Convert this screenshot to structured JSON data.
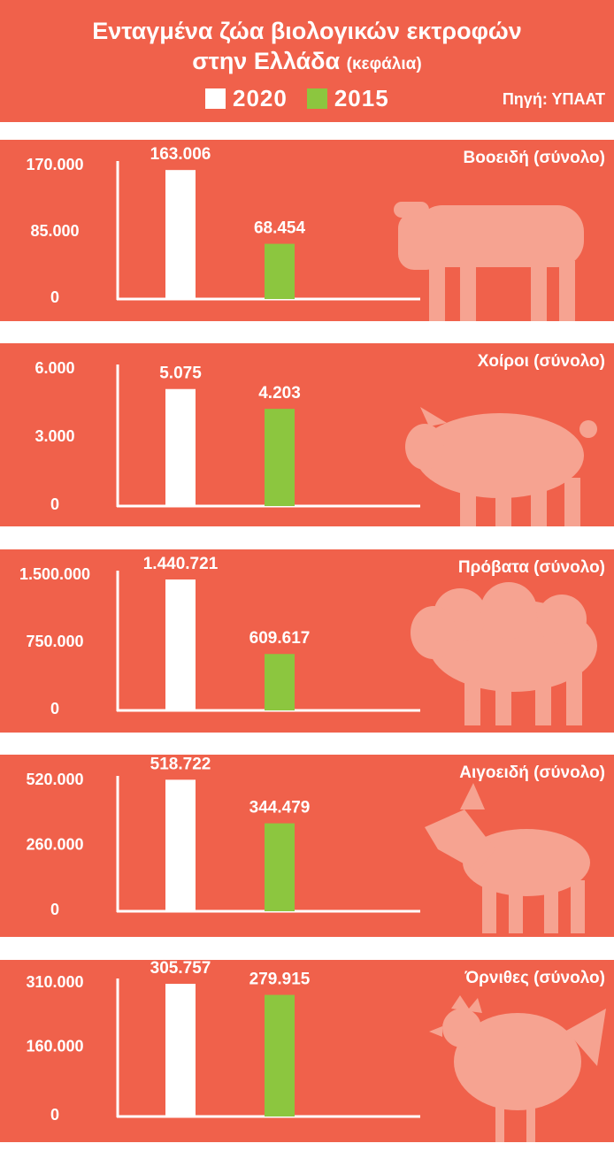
{
  "header": {
    "title_line1": "Ενταγμένα ζώα βιολογικών εκτροφών",
    "title_line2": "στην Ελλάδα",
    "title_unit": "(κεφάλια)",
    "source": "Πηγή: ΥΠΑΑΤ"
  },
  "colors": {
    "background": "#f0614b",
    "series_2020": "#ffffff",
    "series_2015": "#8cc63f",
    "icon": "#f6a391"
  },
  "legend": [
    {
      "label": "2020",
      "color": "#ffffff"
    },
    {
      "label": "2015",
      "color": "#8cc63f"
    }
  ],
  "chart_data": [
    {
      "type": "bar",
      "title": "Βοοειδή (σύνολο)",
      "categories": [
        "2020",
        "2015"
      ],
      "values": [
        163006,
        68454
      ],
      "value_labels": [
        "163.006",
        "68.454"
      ],
      "ylim": [
        0,
        170000
      ],
      "yticks": [
        0,
        85000,
        170000
      ],
      "ytick_labels": [
        "0",
        "85.000",
        "170.000"
      ],
      "icon": "cow-icon"
    },
    {
      "type": "bar",
      "title": "Χοίροι (σύνολο)",
      "categories": [
        "2020",
        "2015"
      ],
      "values": [
        5075,
        4203
      ],
      "value_labels": [
        "5.075",
        "4.203"
      ],
      "ylim": [
        0,
        6000
      ],
      "yticks": [
        0,
        3000,
        6000
      ],
      "ytick_labels": [
        "0",
        "3.000",
        "6.000"
      ],
      "icon": "pig-icon"
    },
    {
      "type": "bar",
      "title": "Πρόβατα (σύνολο)",
      "categories": [
        "2020",
        "2015"
      ],
      "values": [
        1440721,
        609617
      ],
      "value_labels": [
        "1.440.721",
        "609.617"
      ],
      "ylim": [
        0,
        1500000
      ],
      "yticks": [
        0,
        750000,
        1500000
      ],
      "ytick_labels": [
        "0",
        "750.000",
        "1.500.000"
      ],
      "icon": "sheep-icon"
    },
    {
      "type": "bar",
      "title": "Αιγοειδή (σύνολο)",
      "categories": [
        "2020",
        "2015"
      ],
      "values": [
        518722,
        344479
      ],
      "value_labels": [
        "518.722",
        "344.479"
      ],
      "ylim": [
        0,
        520000
      ],
      "yticks": [
        0,
        260000,
        520000
      ],
      "ytick_labels": [
        "0",
        "260.000",
        "520.000"
      ],
      "icon": "goat-icon"
    },
    {
      "type": "bar",
      "title": "Όρνιθες (σύνολο)",
      "categories": [
        "2020",
        "2015"
      ],
      "values": [
        305757,
        279915
      ],
      "value_labels": [
        "305.757",
        "279.915"
      ],
      "ylim": [
        0,
        310000
      ],
      "yticks": [
        0,
        160000,
        310000
      ],
      "ytick_labels": [
        "0",
        "160.000",
        "310.000"
      ],
      "icon": "hen-icon"
    }
  ]
}
